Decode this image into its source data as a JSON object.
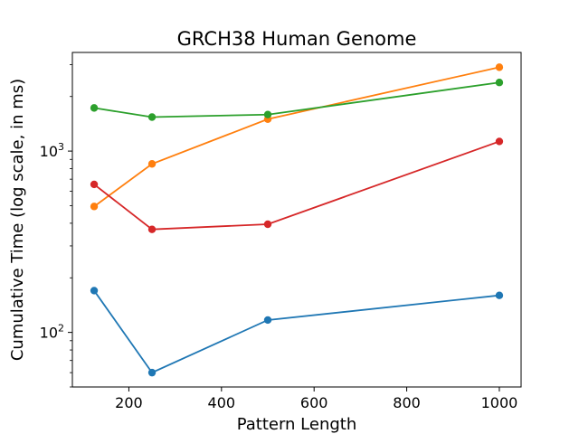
{
  "chart_data": {
    "type": "line",
    "title": "GRCH38 Human Genome",
    "xlabel": "Pattern Length",
    "ylabel": "Cumulative Time (log scale, in ms)",
    "xscale": "linear",
    "yscale": "log",
    "xlim": [
      78,
      1047
    ],
    "ylim": [
      50,
      3500
    ],
    "x_ticks": [
      200,
      400,
      600,
      800,
      1000
    ],
    "y_ticks": [
      {
        "value": 100,
        "base": "10",
        "exp": "2"
      },
      {
        "value": 1000,
        "base": "10",
        "exp": "3"
      }
    ],
    "grid": false,
    "legend": "none",
    "x": [
      125,
      250,
      500,
      1000
    ],
    "series": [
      {
        "color": "#1f77b4",
        "values": [
          170,
          60,
          117,
          160
        ]
      },
      {
        "color": "#ff7f0e",
        "values": [
          495,
          850,
          1500,
          2900
        ]
      },
      {
        "color": "#2ca02c",
        "values": [
          1730,
          1540,
          1590,
          2390
        ]
      },
      {
        "color": "#d62728",
        "values": [
          655,
          370,
          395,
          1130
        ]
      }
    ]
  }
}
